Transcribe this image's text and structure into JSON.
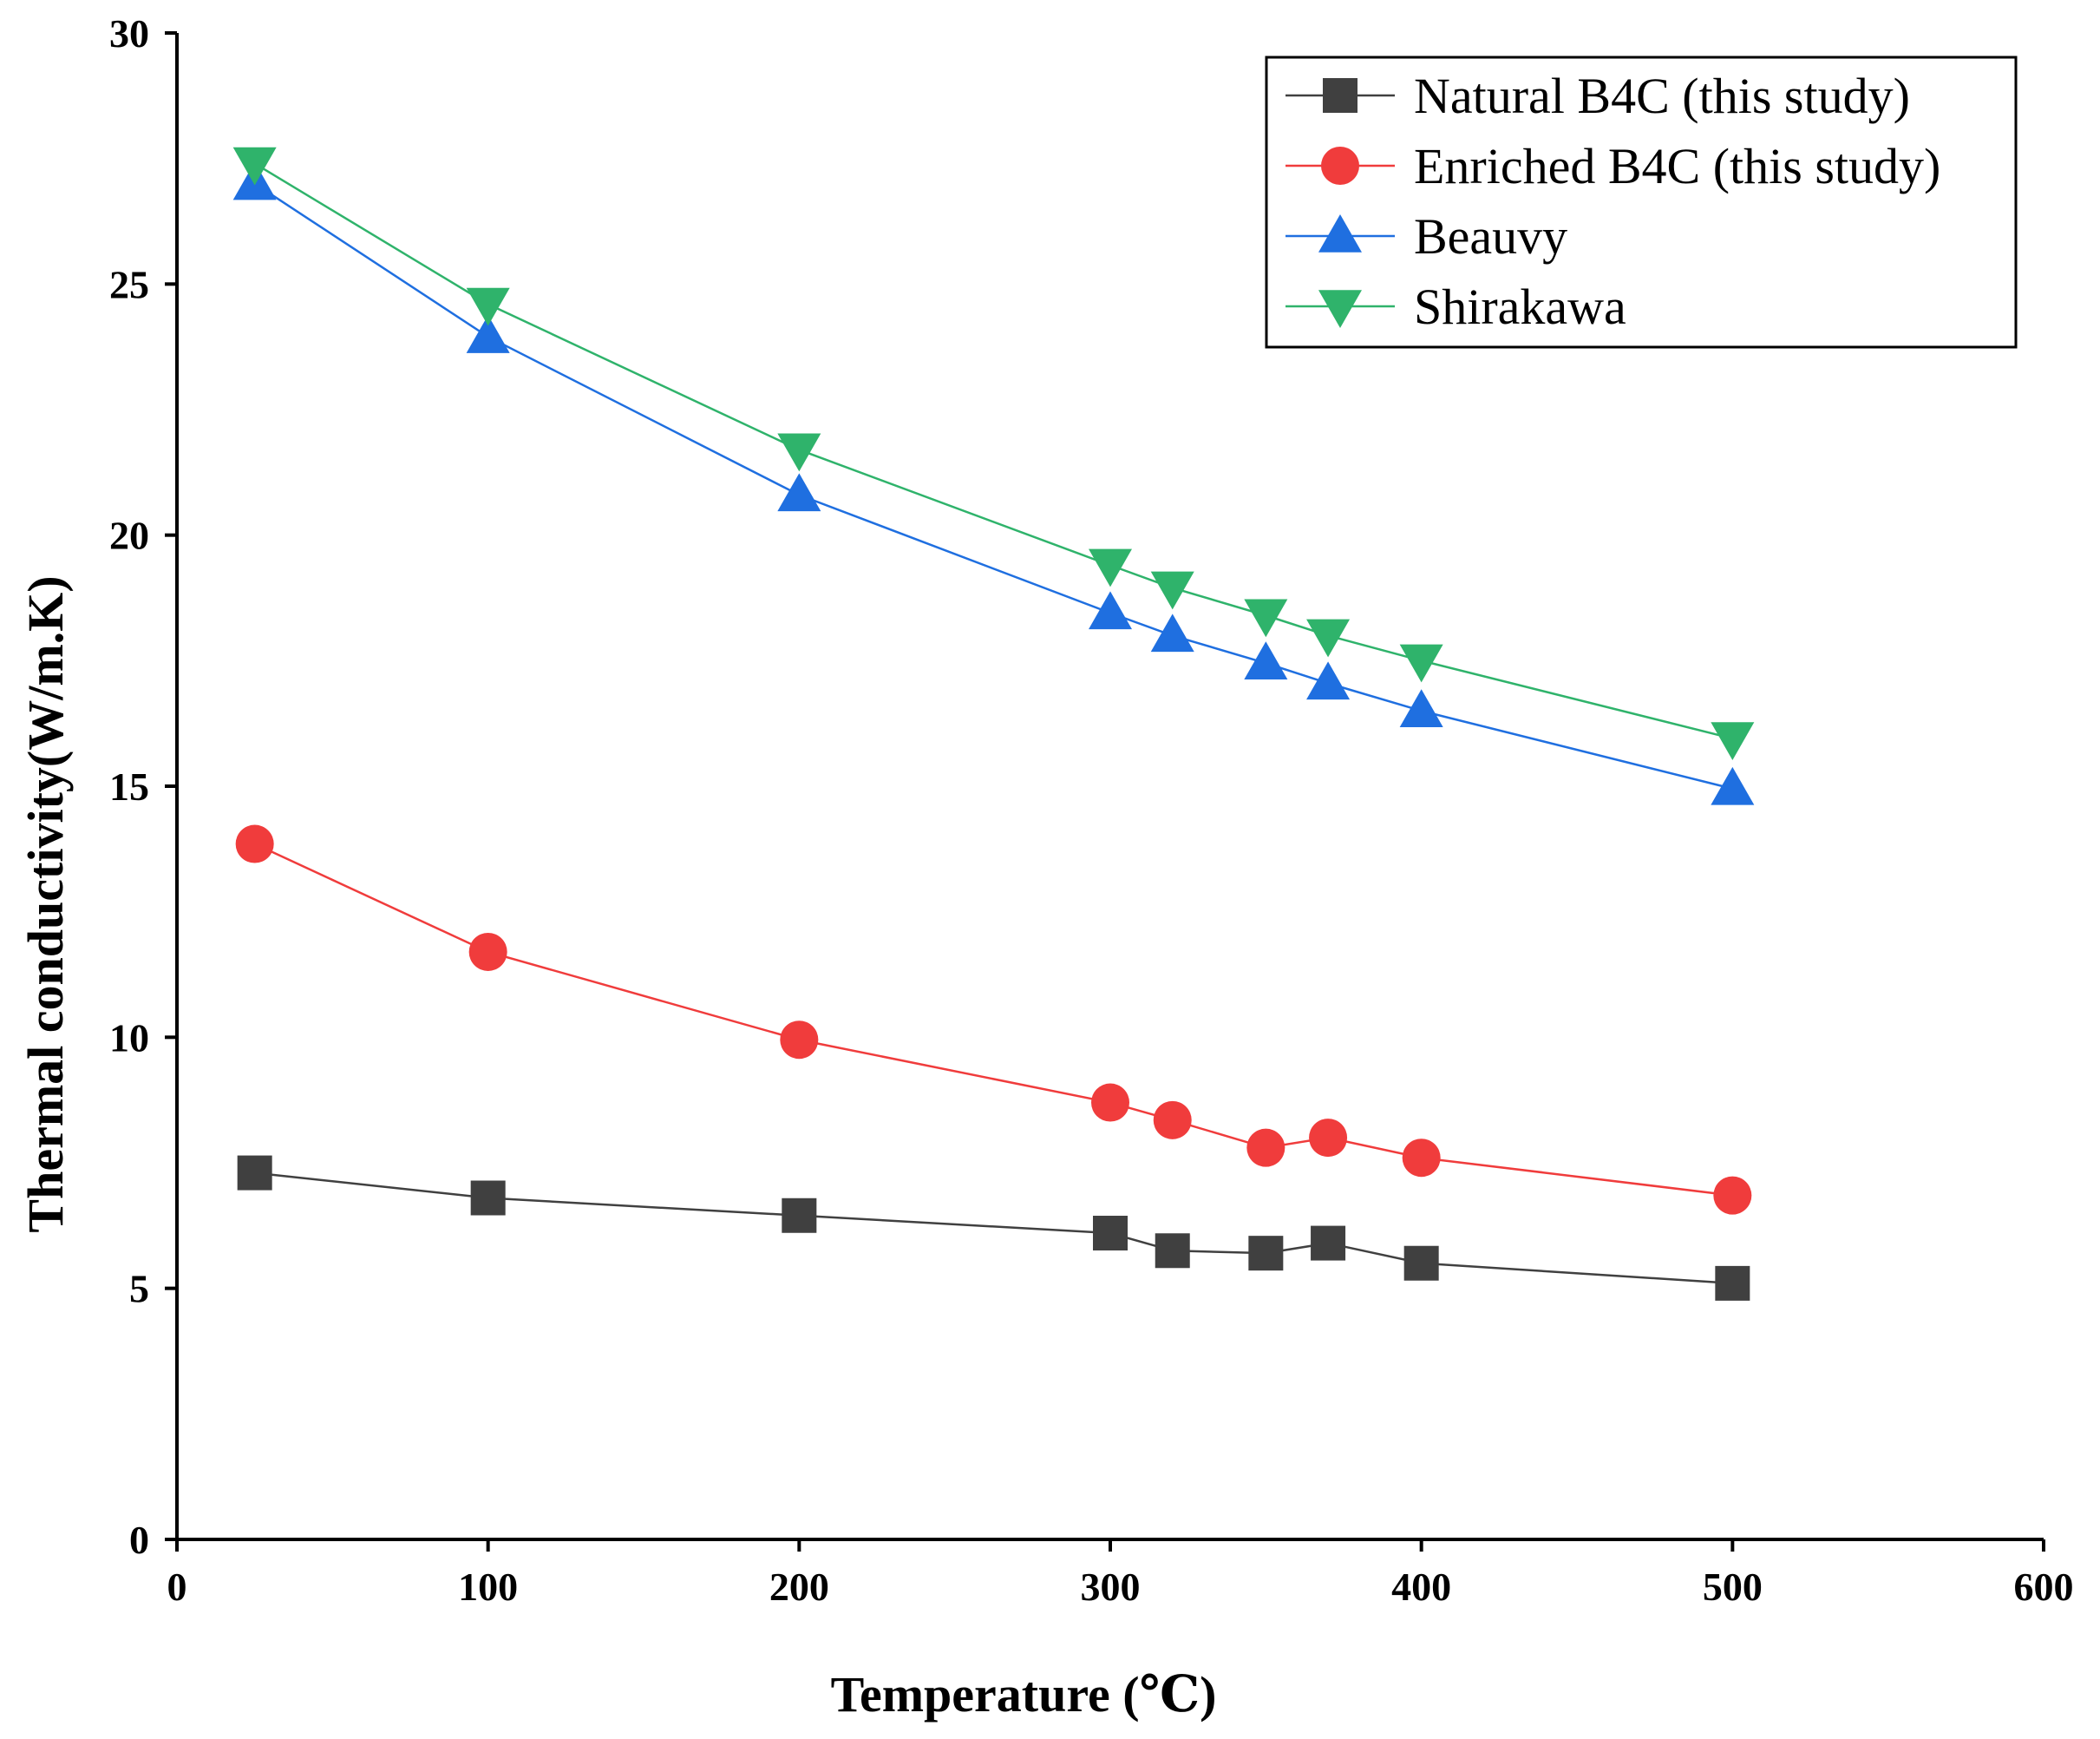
{
  "chart_data": {
    "type": "line",
    "xlabel": "Temperature (℃)",
    "ylabel": "Thermal conductivity(W/m.K)",
    "xlim": [
      0,
      600
    ],
    "ylim": [
      0,
      30
    ],
    "xticks": [
      0,
      100,
      200,
      300,
      400,
      500,
      600
    ],
    "yticks": [
      0,
      5,
      10,
      15,
      20,
      25,
      30
    ],
    "grid": false,
    "legend_position": "top-right",
    "series": [
      {
        "name": "Natural B4C (this study)",
        "color": "#404040",
        "marker": "square",
        "x": [
          25,
          100,
          200,
          300,
          320,
          350,
          370,
          400,
          500
        ],
        "y": [
          7.3,
          6.8,
          6.45,
          6.1,
          5.75,
          5.7,
          5.9,
          5.5,
          5.1
        ]
      },
      {
        "name": "Enriched B4C (this study)",
        "color": "#f03c3c",
        "marker": "circle",
        "x": [
          25,
          100,
          200,
          300,
          320,
          350,
          370,
          400,
          500
        ],
        "y": [
          13.85,
          11.7,
          9.95,
          8.7,
          8.35,
          7.8,
          8.0,
          7.6,
          6.85
        ]
      },
      {
        "name": "Beauvy",
        "color": "#1f6fe0",
        "marker": "triangle-up",
        "x": [
          25,
          100,
          200,
          300,
          320,
          350,
          370,
          400,
          500
        ],
        "y": [
          27.0,
          23.95,
          20.8,
          18.45,
          18.0,
          17.45,
          17.05,
          16.5,
          14.95
        ]
      },
      {
        "name": "Shirakawa",
        "color": "#2fb36b",
        "marker": "triangle-down",
        "x": [
          25,
          100,
          200,
          300,
          320,
          350,
          370,
          400,
          500
        ],
        "y": [
          27.4,
          24.6,
          21.7,
          19.4,
          18.95,
          18.4,
          18.0,
          17.5,
          15.95
        ]
      }
    ]
  }
}
